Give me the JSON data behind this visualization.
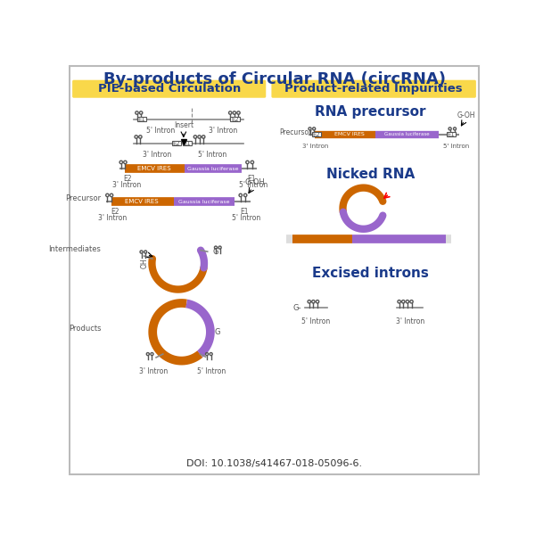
{
  "title": "By-products of Circular RNA (circRNA)",
  "title_color": "#1a3a8a",
  "left_header": "PIE-based Circulation",
  "right_header": "Product-related Impurities",
  "header_bg": "#f9d84a",
  "header_text_color": "#1a3a8a",
  "orange_color": "#cc6600",
  "purple_color": "#9966cc",
  "doi": "DOI: 10.1038/s41467-018-05096-6.",
  "bg_color": "#ffffff",
  "border_color": "#bbbbbb",
  "rna_precursor_label": "RNA precursor",
  "nicked_rna_label": "Nicked RNA",
  "excised_introns_label": "Excised introns",
  "section_label_color": "#1a3a8a",
  "fig_width": 6.0,
  "fig_height": 6.0,
  "dpi": 100
}
